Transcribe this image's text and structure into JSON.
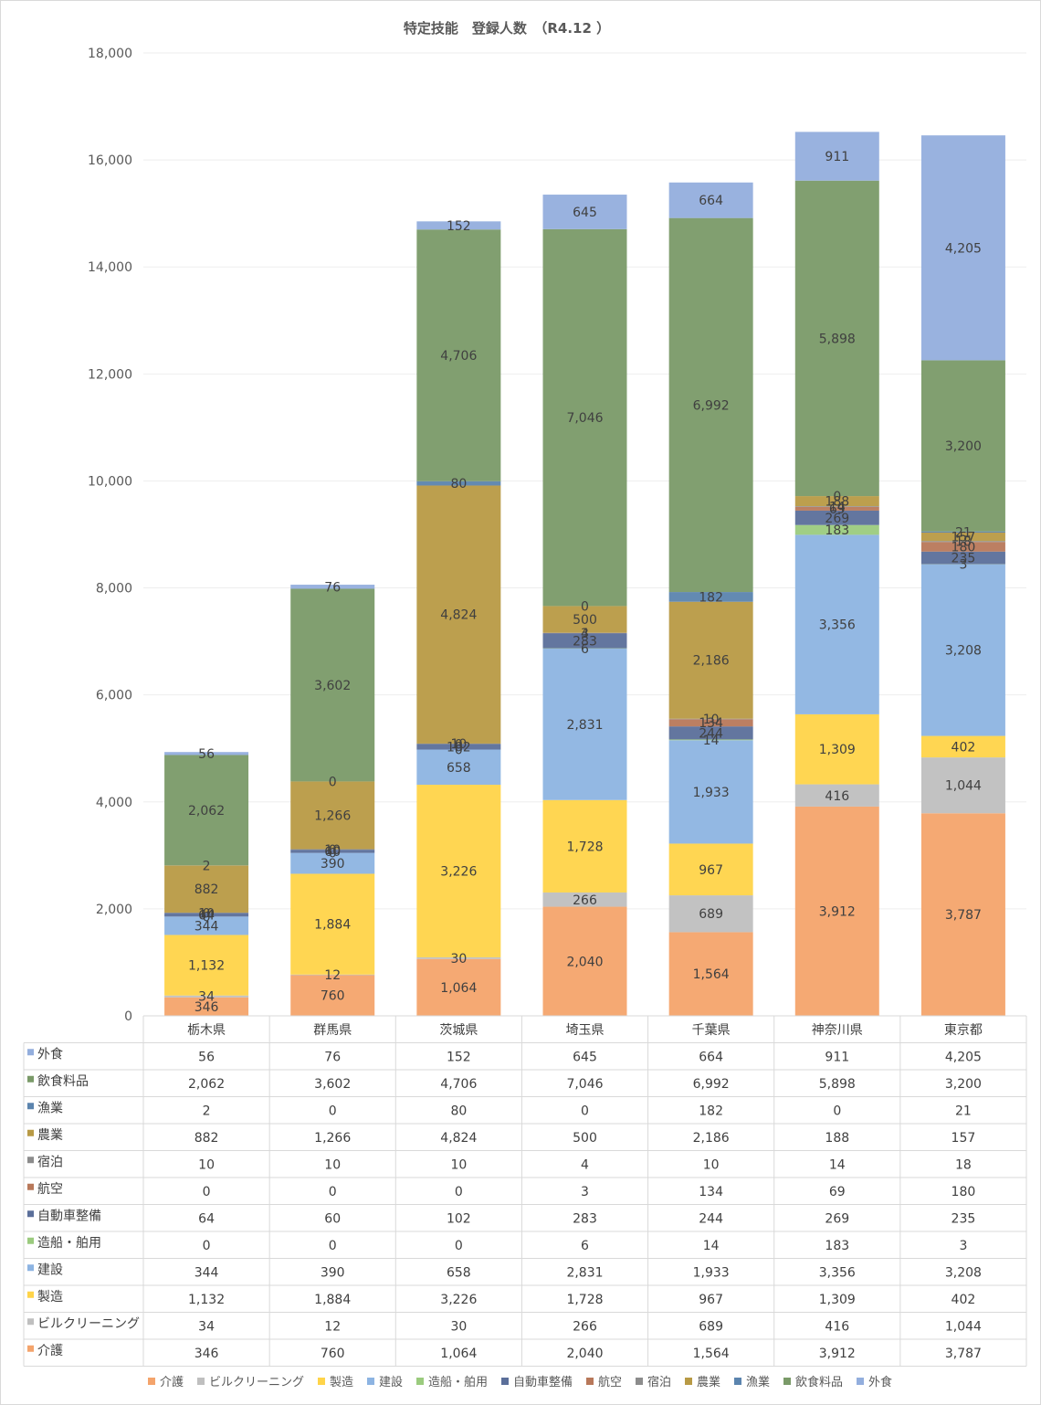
{
  "chart_data": {
    "type": "bar",
    "stacked": true,
    "title": "特定技能　登録人数　（R4.12 ）",
    "categories": [
      "栃木県",
      "群馬県",
      "茨城県",
      "埼玉県",
      "千葉県",
      "神奈川県",
      "東京都"
    ],
    "ylim": [
      0,
      18000
    ],
    "yticks": [
      "0",
      "2,000",
      "4,000",
      "6,000",
      "8,000",
      "10,000",
      "12,000",
      "14,000",
      "16,000",
      "18,000"
    ],
    "grid": true,
    "legend_position": "bottom",
    "data_table": true,
    "series": [
      {
        "name": "介護",
        "color": "#F4A46C",
        "values": [
          346,
          760,
          1064,
          2040,
          1564,
          3912,
          3787
        ],
        "labels": [
          "346",
          "760",
          "1,064",
          "2,040",
          "1,564",
          "3,912",
          "3,787"
        ]
      },
      {
        "name": "ビルクリーニング",
        "color": "#BFBFBF",
        "values": [
          34,
          12,
          30,
          266,
          689,
          416,
          1044
        ],
        "labels": [
          "34",
          "12",
          "30",
          "266",
          "689",
          "416",
          "1,044"
        ]
      },
      {
        "name": "製造",
        "color": "#FFD449",
        "values": [
          1132,
          1884,
          3226,
          1728,
          967,
          1309,
          402
        ],
        "labels": [
          "1,132",
          "1,884",
          "3,226",
          "1,728",
          "967",
          "1,309",
          "402"
        ]
      },
      {
        "name": "建設",
        "color": "#8DB4E2",
        "values": [
          344,
          390,
          658,
          2831,
          1933,
          3356,
          3208
        ],
        "labels": [
          "344",
          "390",
          "658",
          "2,831",
          "1,933",
          "3,356",
          "3,208"
        ]
      },
      {
        "name": "造船・舶用",
        "color": "#9BCB7E",
        "values": [
          0,
          0,
          0,
          6,
          14,
          183,
          3
        ],
        "labels": [
          "0",
          "0",
          "0",
          "6",
          "14",
          "183",
          "3"
        ]
      },
      {
        "name": "自動車整備",
        "color": "#5B6F9A",
        "values": [
          64,
          60,
          102,
          283,
          244,
          269,
          235
        ],
        "labels": [
          "64",
          "60",
          "102",
          "283",
          "244",
          "269",
          "235"
        ]
      },
      {
        "name": "航空",
        "color": "#B8785A",
        "values": [
          0,
          0,
          0,
          3,
          134,
          69,
          180
        ],
        "labels": [
          "0",
          "0",
          "0",
          "3",
          "134",
          "69",
          "180"
        ]
      },
      {
        "name": "宿泊",
        "color": "#8C8C8C",
        "values": [
          10,
          10,
          10,
          4,
          10,
          14,
          18
        ],
        "labels": [
          "10",
          "10",
          "10",
          "4",
          "10",
          "14",
          "18"
        ]
      },
      {
        "name": "農業",
        "color": "#B89A45",
        "values": [
          882,
          1266,
          4824,
          500,
          2186,
          188,
          157
        ],
        "labels": [
          "882",
          "1,266",
          "4,824",
          "500",
          "2,186",
          "188",
          "157"
        ]
      },
      {
        "name": "漁業",
        "color": "#5B84AE",
        "values": [
          2,
          0,
          80,
          0,
          182,
          0,
          21
        ],
        "labels": [
          "2",
          "0",
          "80",
          "0",
          "182",
          "0",
          "21"
        ]
      },
      {
        "name": "飲食料品",
        "color": "#7A9A68",
        "values": [
          2062,
          3602,
          4706,
          7046,
          6992,
          5898,
          3200
        ],
        "labels": [
          "2,062",
          "3,602",
          "4,706",
          "7,046",
          "6,992",
          "5,898",
          "3,200"
        ]
      },
      {
        "name": "外食",
        "color": "#93AEDD",
        "values": [
          56,
          76,
          152,
          645,
          664,
          911,
          4205
        ],
        "labels": [
          "56",
          "76",
          "152",
          "645",
          "664",
          "911",
          "4,205"
        ]
      }
    ]
  }
}
